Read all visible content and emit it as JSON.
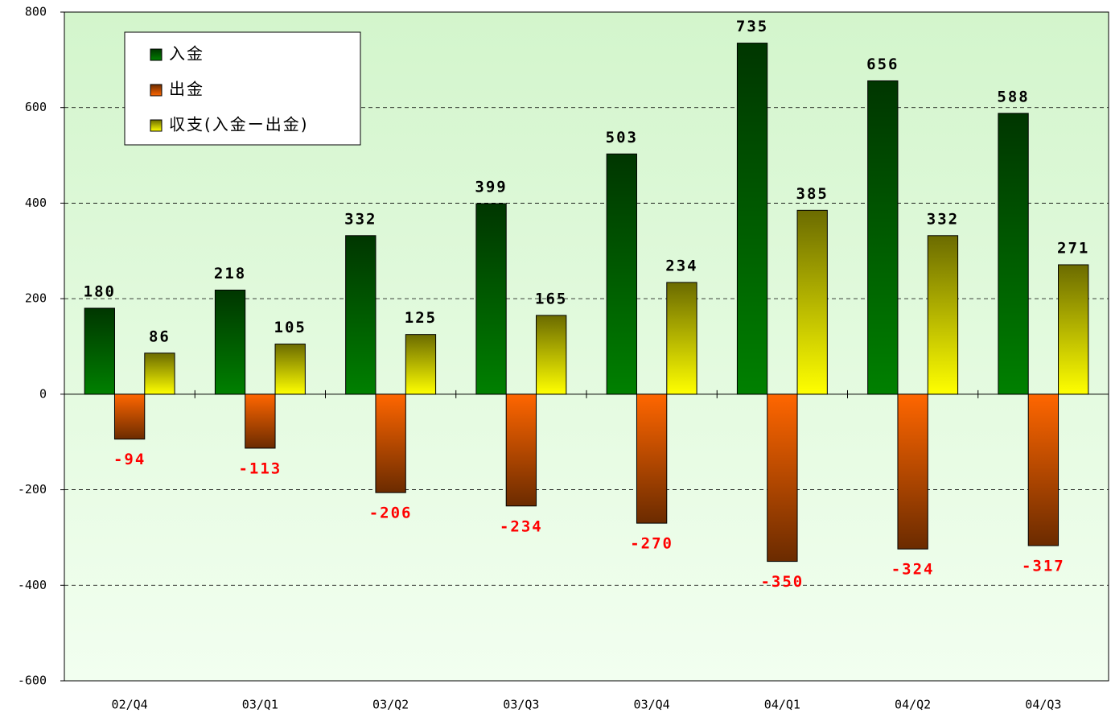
{
  "chart_data": {
    "type": "bar",
    "categories": [
      "02/Q4",
      "03/Q1",
      "03/Q2",
      "03/Q3",
      "03/Q4",
      "04/Q1",
      "04/Q2",
      "04/Q3"
    ],
    "series": [
      {
        "name": "入金",
        "color": "#008000",
        "values": [
          180,
          218,
          332,
          399,
          503,
          735,
          656,
          588
        ]
      },
      {
        "name": "出金",
        "color": "#ff6600",
        "values": [
          -94,
          -113,
          -206,
          -234,
          -270,
          -350,
          -324,
          -317
        ]
      },
      {
        "name": "収支(入金ー出金)",
        "color": "#ffff00",
        "values": [
          86,
          105,
          125,
          165,
          234,
          385,
          332,
          271
        ]
      }
    ],
    "ylim": [
      -600,
      800
    ],
    "yticks": [
      -600,
      -400,
      -200,
      0,
      200,
      400,
      600,
      800
    ],
    "grid": true,
    "legend": "upper left"
  }
}
